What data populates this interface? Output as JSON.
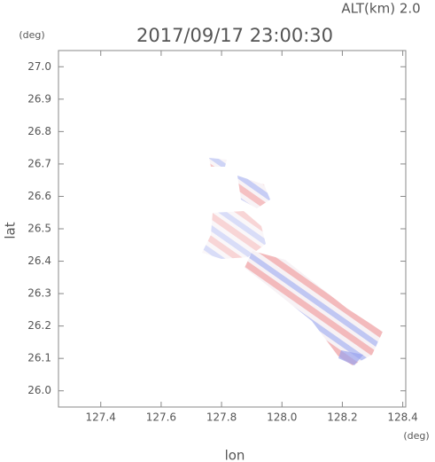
{
  "chart_data": {
    "type": "scatter",
    "title": "2017/09/17 23:00:30",
    "subtitle": "ALT(km) 2.0",
    "x_label": "lon",
    "y_label": "lat",
    "x_unit": "(deg)",
    "y_unit": "(deg)",
    "xlim": [
      127.26,
      128.41
    ],
    "ylim": [
      25.95,
      27.05
    ],
    "xticks": [
      127.4,
      127.6,
      127.8,
      {
        "value": 128,
        "label": "128.0"
      },
      128.2,
      128.4
    ],
    "yticks": [
      {
        "value": 26,
        "label": "26.0"
      },
      26.1,
      26.2,
      26.3,
      26.4,
      26.5,
      26.6,
      26.7,
      26.8,
      26.9,
      {
        "value": 27,
        "label": "27.0"
      }
    ]
  }
}
